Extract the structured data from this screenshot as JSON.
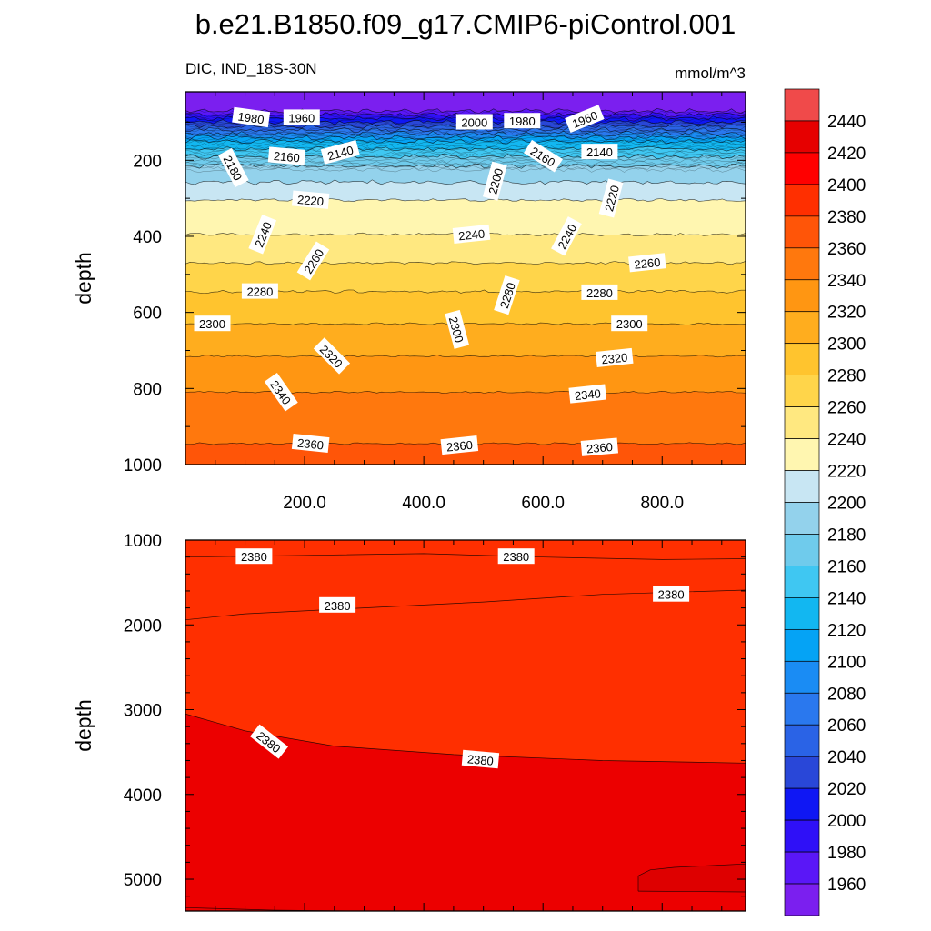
{
  "title": "b.e21.B1850.f09_g17.CMIP6-piControl.001",
  "subtitle_left": "DIC, IND_18S-30N",
  "subtitle_right": "mmol/m^3",
  "chart_data": [
    {
      "type": "heatmap",
      "subtype": "filled-contour",
      "panel": "upper",
      "variable": "DIC",
      "region": "IND_18S-30N",
      "units": "mmol/m^3",
      "xlabel": "",
      "ylabel": "depth",
      "xlim": [
        0,
        940
      ],
      "ylim": [
        1000,
        0
      ],
      "y_visible_top": 20,
      "xticks": [
        "200.0",
        "400.0",
        "600.0",
        "800.0"
      ],
      "yticks": [
        "200",
        "400",
        "600",
        "800",
        "1000"
      ],
      "contour_levels_mean_depth": [
        {
          "level": 1960,
          "depth": 70
        },
        {
          "level": 1980,
          "depth": 80
        },
        {
          "level": 2000,
          "depth": 90
        },
        {
          "level": 2020,
          "depth": 100
        },
        {
          "level": 2040,
          "depth": 110
        },
        {
          "level": 2060,
          "depth": 120
        },
        {
          "level": 2080,
          "depth": 130
        },
        {
          "level": 2100,
          "depth": 140
        },
        {
          "level": 2120,
          "depth": 150
        },
        {
          "level": 2140,
          "depth": 170
        },
        {
          "level": 2160,
          "depth": 190
        },
        {
          "level": 2180,
          "depth": 215
        },
        {
          "level": 2200,
          "depth": 258
        },
        {
          "level": 2220,
          "depth": 305
        },
        {
          "level": 2240,
          "depth": 395
        },
        {
          "level": 2260,
          "depth": 470
        },
        {
          "level": 2280,
          "depth": 545
        },
        {
          "level": 2300,
          "depth": 630
        },
        {
          "level": 2320,
          "depth": 715
        },
        {
          "level": 2340,
          "depth": 810
        },
        {
          "level": 2360,
          "depth": 945
        }
      ],
      "contour_labels": [
        {
          "text": "1980",
          "x": 110,
          "y": 88,
          "angle": 8
        },
        {
          "text": "1960",
          "x": 195,
          "y": 88,
          "angle": 0
        },
        {
          "text": "2000",
          "x": 485,
          "y": 100,
          "angle": 0
        },
        {
          "text": "1980",
          "x": 565,
          "y": 97,
          "angle": 0
        },
        {
          "text": "1960",
          "x": 670,
          "y": 92,
          "angle": -22
        },
        {
          "text": "2180",
          "x": 80,
          "y": 220,
          "angle": 62
        },
        {
          "text": "2160",
          "x": 170,
          "y": 190,
          "angle": 5
        },
        {
          "text": "2140",
          "x": 260,
          "y": 180,
          "angle": -15
        },
        {
          "text": "2160",
          "x": 600,
          "y": 190,
          "angle": 32
        },
        {
          "text": "2140",
          "x": 695,
          "y": 178,
          "angle": 0
        },
        {
          "text": "2200",
          "x": 520,
          "y": 255,
          "angle": -75
        },
        {
          "text": "2220",
          "x": 210,
          "y": 305,
          "angle": 5
        },
        {
          "text": "2220",
          "x": 715,
          "y": 300,
          "angle": -75
        },
        {
          "text": "2240",
          "x": 130,
          "y": 395,
          "angle": -68
        },
        {
          "text": "2240",
          "x": 480,
          "y": 395,
          "angle": -6
        },
        {
          "text": "2240",
          "x": 640,
          "y": 400,
          "angle": -62
        },
        {
          "text": "2260",
          "x": 215,
          "y": 465,
          "angle": -58
        },
        {
          "text": "2260",
          "x": 775,
          "y": 470,
          "angle": -6
        },
        {
          "text": "2280",
          "x": 125,
          "y": 545,
          "angle": 0
        },
        {
          "text": "2280",
          "x": 540,
          "y": 555,
          "angle": -72
        },
        {
          "text": "2280",
          "x": 695,
          "y": 548,
          "angle": 0
        },
        {
          "text": "2300",
          "x": 45,
          "y": 630,
          "angle": 0
        },
        {
          "text": "2300",
          "x": 455,
          "y": 645,
          "angle": 75
        },
        {
          "text": "2300",
          "x": 745,
          "y": 630,
          "angle": 0
        },
        {
          "text": "2320",
          "x": 245,
          "y": 715,
          "angle": 45
        },
        {
          "text": "2320",
          "x": 720,
          "y": 720,
          "angle": -6
        },
        {
          "text": "2340",
          "x": 160,
          "y": 810,
          "angle": 55
        },
        {
          "text": "2340",
          "x": 675,
          "y": 815,
          "angle": -6
        },
        {
          "text": "2360",
          "x": 210,
          "y": 945,
          "angle": 6
        },
        {
          "text": "2360",
          "x": 460,
          "y": 950,
          "angle": -6
        },
        {
          "text": "2360",
          "x": 695,
          "y": 955,
          "angle": -5
        }
      ]
    },
    {
      "type": "heatmap",
      "subtype": "filled-contour",
      "panel": "lower",
      "variable": "DIC",
      "region": "IND_18S-30N",
      "units": "mmol/m^3",
      "xlabel": "",
      "ylabel": "depth",
      "xlim": [
        0,
        940
      ],
      "ylim": [
        5375,
        1000
      ],
      "yticks": [
        "1000",
        "2000",
        "3000",
        "4000",
        "5000"
      ],
      "contour_lines": [
        {
          "level": 2380,
          "points": [
            [
              0,
              1200
            ],
            [
              200,
              1180
            ],
            [
              400,
              1160
            ],
            [
              600,
              1200
            ],
            [
              800,
              1230
            ],
            [
              940,
              1220
            ]
          ]
        },
        {
          "level": 2380,
          "points": [
            [
              0,
              1940
            ],
            [
              100,
              1870
            ],
            [
              300,
              1800
            ],
            [
              500,
              1730
            ],
            [
              700,
              1640
            ],
            [
              940,
              1590
            ]
          ]
        },
        {
          "level": 2380,
          "points": [
            [
              0,
              3050
            ],
            [
              100,
              3250
            ],
            [
              250,
              3430
            ],
            [
              450,
              3530
            ],
            [
              700,
              3600
            ],
            [
              940,
              3630
            ]
          ]
        },
        {
          "level": 2380,
          "points": [
            [
              0,
              5335
            ],
            [
              150,
              5365
            ],
            [
              300,
              5375
            ]
          ]
        },
        {
          "level": 2400,
          "points": [
            [
              760,
              5140
            ],
            [
              760,
              4960
            ],
            [
              780,
              4890
            ],
            [
              820,
              4860
            ],
            [
              940,
              4820
            ]
          ]
        },
        {
          "level": 2400,
          "points": [
            [
              760,
              5140
            ],
            [
              940,
              5150
            ]
          ]
        }
      ],
      "contour_labels": [
        {
          "text": "2380",
          "x": 115,
          "y": 1195,
          "angle": 0
        },
        {
          "text": "2380",
          "x": 555,
          "y": 1195,
          "angle": 0
        },
        {
          "text": "2380",
          "x": 255,
          "y": 1770,
          "angle": 0
        },
        {
          "text": "2380",
          "x": 815,
          "y": 1640,
          "angle": 0
        },
        {
          "text": "2380",
          "x": 140,
          "y": 3380,
          "angle": 38
        },
        {
          "text": "2380",
          "x": 495,
          "y": 3590,
          "angle": 5
        }
      ]
    }
  ],
  "colorbar": {
    "min": 1940,
    "max": 2460,
    "step": 20,
    "tick_labels": [
      "2440",
      "2420",
      "2400",
      "2380",
      "2360",
      "2340",
      "2320",
      "2300",
      "2280",
      "2260",
      "2240",
      "2220",
      "2200",
      "2180",
      "2160",
      "2140",
      "2120",
      "2100",
      "2080",
      "2060",
      "2040",
      "2020",
      "2000",
      "1980",
      "1960"
    ]
  },
  "colors": {
    "deep": "#7c1ef0",
    "blue_mid": "#1d8ff2",
    "cyan": "#3fc7f2",
    "light_blue": "#c8e6f3",
    "pale_yellow": "#fff3a8",
    "yellow": "#ffc82c",
    "orange": "#ff8c10",
    "red": "#ff2200",
    "deep_red": "#e00000",
    "pink": "#f7b3b3"
  }
}
